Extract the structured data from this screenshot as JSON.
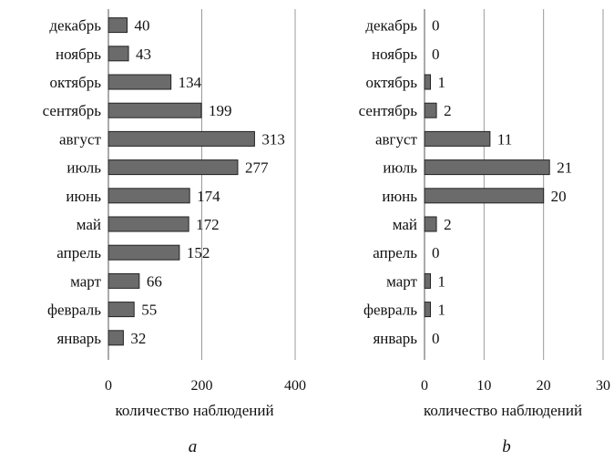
{
  "chart_data": [
    {
      "type": "bar",
      "orientation": "horizontal",
      "panel_label": "a",
      "categories": [
        "январь",
        "февраль",
        "март",
        "апрель",
        "май",
        "июнь",
        "июль",
        "август",
        "сентябрь",
        "октябрь",
        "ноябрь",
        "декабрь"
      ],
      "values": [
        32,
        55,
        66,
        152,
        172,
        174,
        277,
        313,
        199,
        134,
        43,
        40
      ],
      "xlabel": "количество наблюдений",
      "xlim": [
        0,
        400
      ],
      "xticks": [
        0,
        200,
        400
      ],
      "grid": true,
      "bar_color": "#6b6b6b",
      "grid_color": "#9a9a9a"
    },
    {
      "type": "bar",
      "orientation": "horizontal",
      "panel_label": "b",
      "categories": [
        "январь",
        "февраль",
        "март",
        "апрель",
        "май",
        "июнь",
        "июль",
        "август",
        "сентябрь",
        "октябрь",
        "ноябрь",
        "декабрь"
      ],
      "values": [
        0,
        1,
        1,
        0,
        2,
        20,
        21,
        11,
        2,
        1,
        0,
        0
      ],
      "xlabel": "количество наблюдений",
      "xlim": [
        0,
        30
      ],
      "xticks": [
        0,
        10,
        20,
        30
      ],
      "grid": true,
      "bar_color": "#6b6b6b",
      "grid_color": "#9a9a9a"
    }
  ]
}
